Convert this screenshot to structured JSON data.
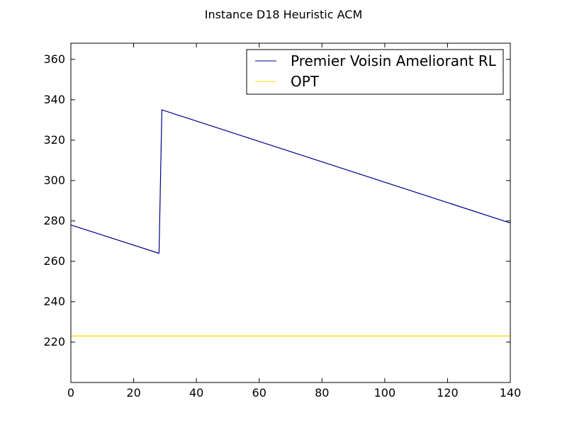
{
  "chart_data": {
    "type": "line",
    "title": "Instance D18 Heuristic ACM",
    "xlabel": "",
    "ylabel": "",
    "xlim": [
      0,
      140
    ],
    "ylim": [
      200,
      368
    ],
    "x_ticks": [
      0,
      20,
      40,
      60,
      80,
      100,
      120,
      140
    ],
    "y_ticks": [
      220,
      240,
      260,
      280,
      300,
      320,
      340,
      360
    ],
    "grid": false,
    "legend_position": "top-right",
    "series": [
      {
        "name": "Premier Voisin Ameliorant RL",
        "color": "#00008b",
        "x": [
          0,
          28,
          28.1,
          29,
          140
        ],
        "y": [
          278,
          264,
          264,
          335,
          279
        ]
      },
      {
        "name": "OPT",
        "color": "#ffd700",
        "x": [
          0,
          140
        ],
        "y": [
          223,
          223
        ]
      }
    ]
  }
}
